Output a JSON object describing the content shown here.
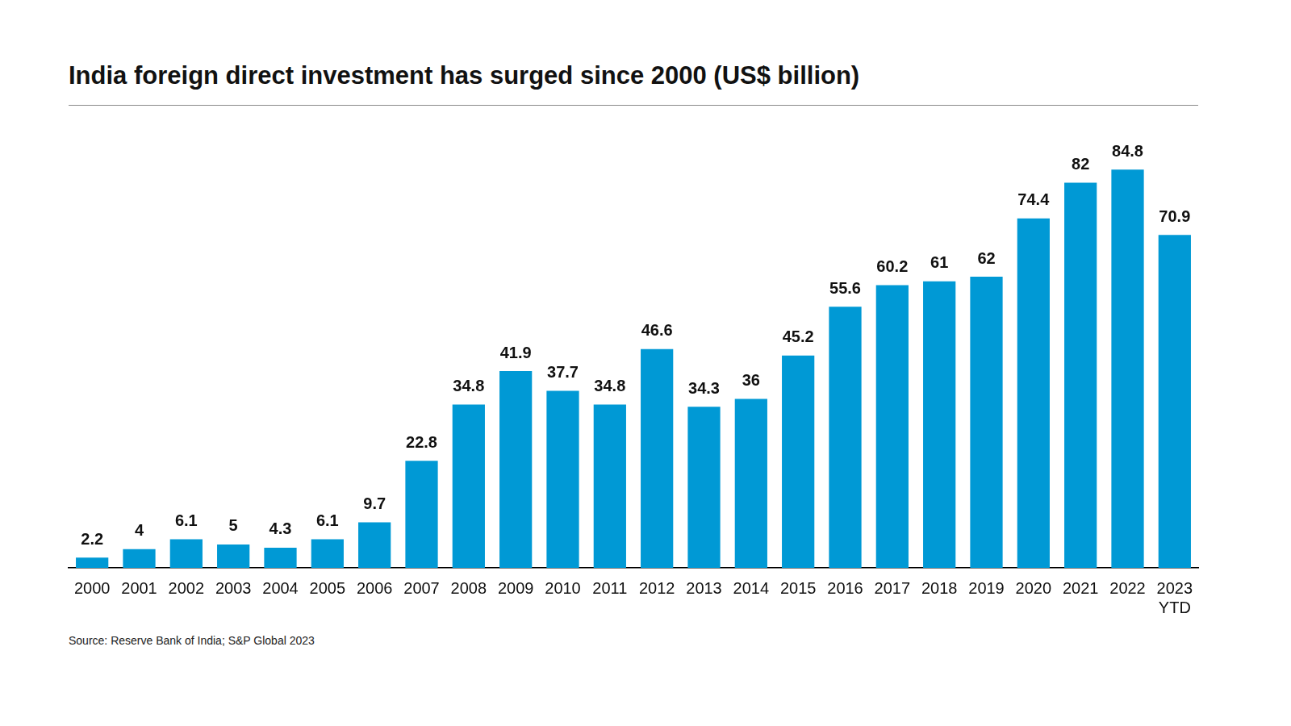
{
  "chart_data": {
    "type": "bar",
    "title": "India foreign direct investment has surged since 2000 (US$ billion)",
    "source": "Source: Reserve Bank of India; S&P Global 2023",
    "categories": [
      "2000",
      "2001",
      "2002",
      "2003",
      "2004",
      "2005",
      "2006",
      "2007",
      "2008",
      "2009",
      "2010",
      "2011",
      "2012",
      "2013",
      "2014",
      "2015",
      "2016",
      "2017",
      "2018",
      "2019",
      "2020",
      "2021",
      "2022",
      "2023 YTD"
    ],
    "values": [
      2.2,
      4,
      6.1,
      5,
      4.3,
      6.1,
      9.7,
      22.8,
      34.8,
      41.9,
      37.7,
      34.8,
      46.6,
      34.3,
      36,
      45.2,
      55.6,
      60.2,
      61,
      62,
      74.4,
      82,
      84.8,
      70.9
    ],
    "color": "#0099d5",
    "ylim": [
      0,
      90
    ],
    "grid": false,
    "data_labels": true,
    "tick_labels": "x"
  }
}
